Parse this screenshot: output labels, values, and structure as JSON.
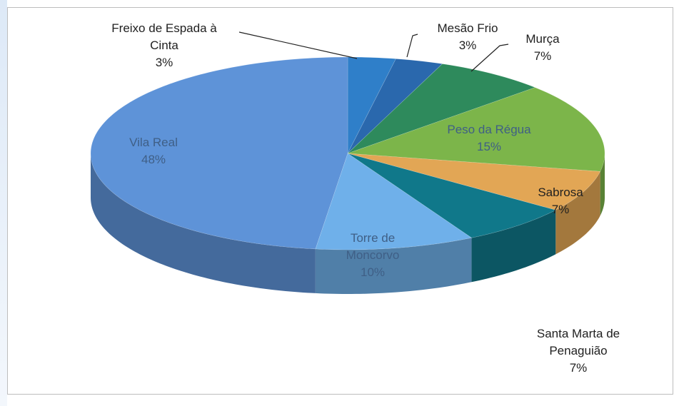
{
  "chart_data": {
    "type": "pie3d",
    "categories": [
      "Freixo de Espada à Cinta",
      "Mesão Frio",
      "Murça",
      "Peso da Régua",
      "Sabrosa",
      "Santa Marta de Penaguião",
      "Torre de Moncorvo",
      "Vila Real"
    ],
    "values": [
      3,
      3,
      7,
      15,
      7,
      7,
      10,
      48
    ],
    "value_labels": [
      "3%",
      "3%",
      "7%",
      "15%",
      "7%",
      "7%",
      "10%",
      "48%"
    ],
    "colors": [
      "#2f7fc9",
      "#2a68ad",
      "#2e8a5c",
      "#7cb54a",
      "#e2a655",
      "#10788a",
      "#6fb0ea",
      "#5e93d8"
    ]
  }
}
